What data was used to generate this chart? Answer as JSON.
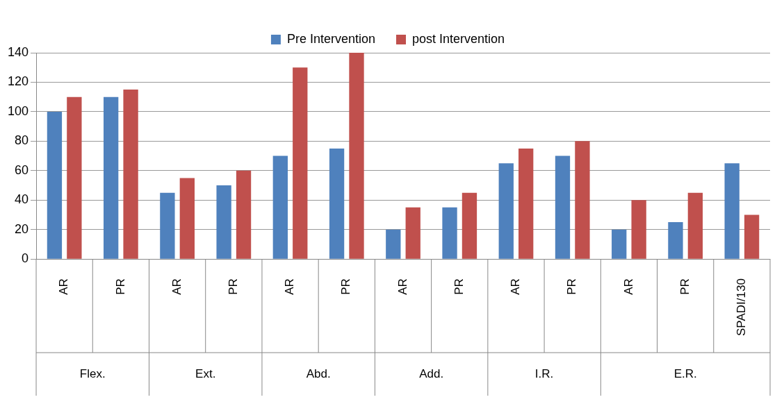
{
  "chart_data": {
    "type": "bar",
    "categories": [
      "AR",
      "PR",
      "AR",
      "PR",
      "AR",
      "PR",
      "AR",
      "PR",
      "AR",
      "PR",
      "AR",
      "PR",
      "SPADI/130"
    ],
    "series": [
      {
        "name": "Pre Intervention",
        "color": "#4f81bd",
        "values": [
          100,
          110,
          45,
          50,
          70,
          75,
          20,
          35,
          65,
          70,
          20,
          25,
          65
        ]
      },
      {
        "name": "post Intervention",
        "color": "#c0504d",
        "values": [
          110,
          115,
          55,
          60,
          130,
          140,
          35,
          45,
          75,
          80,
          40,
          45,
          30
        ]
      }
    ],
    "ylim": [
      0,
      140
    ],
    "yticks": [
      0,
      20,
      40,
      60,
      80,
      100,
      120,
      140
    ],
    "grid": "y",
    "legend": "top",
    "annotations": [
      "Flex.",
      "Ext.",
      "Abd.",
      "Add.",
      "I.R.",
      "E.R."
    ]
  }
}
